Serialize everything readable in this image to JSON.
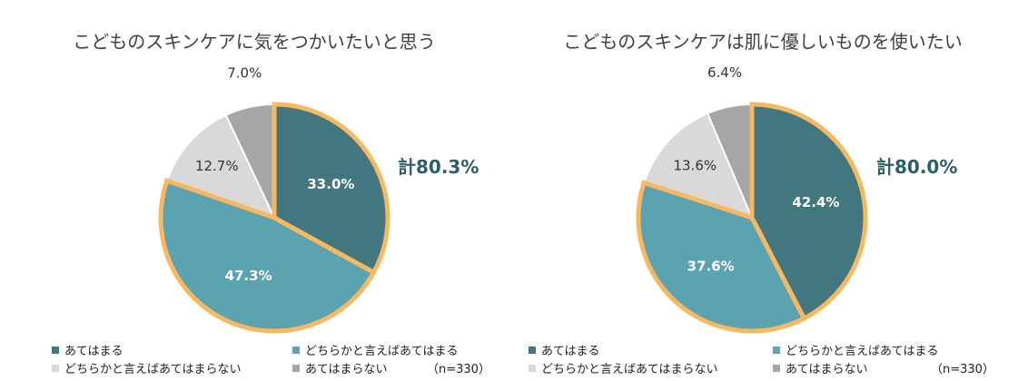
{
  "colors": {
    "ateharu": "#43777f",
    "dochiraka_ateharu": "#5ba3b0",
    "dochiraka_ateharanai": "#d9d9d9",
    "ateharanai": "#a6a6a6",
    "highlight": "#f7b862",
    "total_text": "#2e5e6a"
  },
  "legend": {
    "items": [
      "あてはまる",
      "どちらかと言えばあてはまる",
      "どちらかと言えばあてはまらない",
      "あてはまらない"
    ],
    "n_label": "（n=330）"
  },
  "chart_data": [
    {
      "type": "pie",
      "title": "こどものスキンケアに気をつかいたいと思う",
      "total_label": "計80.3%",
      "slices": [
        {
          "label": "あてはまる",
          "value": 33.0,
          "value_label": "33.0%"
        },
        {
          "label": "どちらかと言えばあてはまる",
          "value": 47.3,
          "value_label": "47.3%"
        },
        {
          "label": "どちらかと言えばあてはまらない",
          "value": 12.7,
          "value_label": "12.7%"
        },
        {
          "label": "あてはまらない",
          "value": 7.0,
          "value_label": "7.0%"
        }
      ]
    },
    {
      "type": "pie",
      "title": "こどものスキンケアは肌に優しいものを使いたい",
      "total_label": "計80.0%",
      "slices": [
        {
          "label": "あてはまる",
          "value": 42.4,
          "value_label": "42.4%"
        },
        {
          "label": "どちらかと言えばあてはまる",
          "value": 37.6,
          "value_label": "37.6%"
        },
        {
          "label": "どちらかと言えばあてはまらない",
          "value": 13.6,
          "value_label": "13.6%"
        },
        {
          "label": "あてはまらない",
          "value": 6.4,
          "value_label": "6.4%"
        }
      ]
    }
  ]
}
